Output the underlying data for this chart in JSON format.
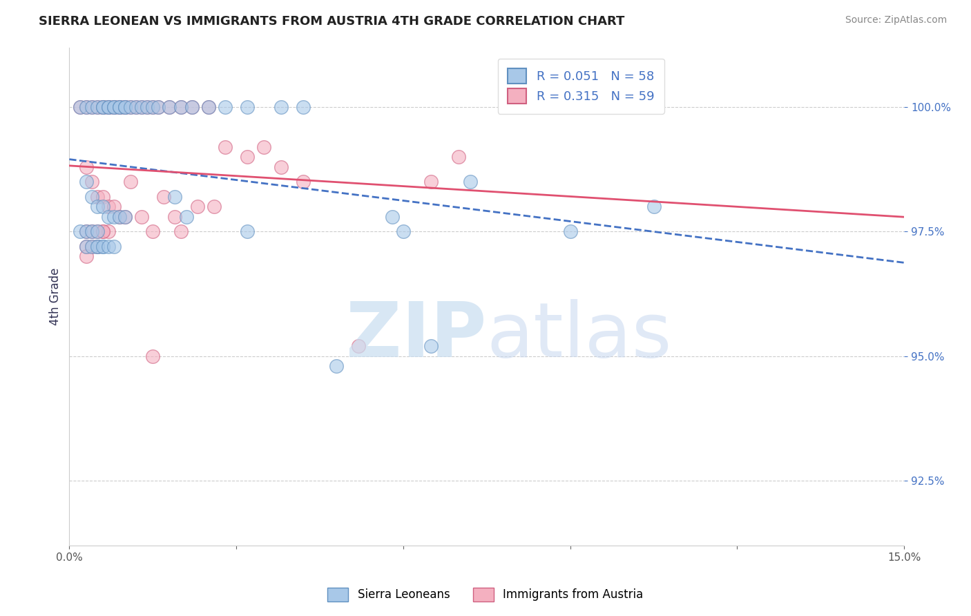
{
  "title": "SIERRA LEONEAN VS IMMIGRANTS FROM AUSTRIA 4TH GRADE CORRELATION CHART",
  "source": "Source: ZipAtlas.com",
  "ylabel": "4th Grade",
  "ytick_values": [
    92.5,
    95.0,
    97.5,
    100.0
  ],
  "xmin": 0.0,
  "xmax": 15.0,
  "ymin": 91.2,
  "ymax": 101.2,
  "legend_blue_label": "Sierra Leoneans",
  "legend_pink_label": "Immigrants from Austria",
  "R_blue": "0.051",
  "N_blue": "58",
  "R_pink": "0.315",
  "N_pink": "59",
  "blue_color": "#a8c8e8",
  "pink_color": "#f4b0c0",
  "blue_edge_color": "#6090c0",
  "pink_edge_color": "#d06080",
  "blue_line_color": "#4472c4",
  "pink_line_color": "#e05070",
  "blue_scatter_x": [
    0.2,
    0.3,
    0.4,
    0.5,
    0.6,
    0.6,
    0.7,
    0.7,
    0.8,
    0.8,
    0.9,
    0.9,
    1.0,
    1.0,
    1.1,
    1.2,
    1.3,
    1.4,
    1.5,
    1.6,
    1.8,
    2.0,
    2.2,
    2.5,
    2.8,
    3.2,
    3.8,
    4.2,
    0.3,
    0.4,
    0.5,
    0.6,
    0.7,
    0.8,
    0.9,
    1.0,
    0.2,
    0.3,
    0.4,
    0.5,
    0.5,
    0.6,
    0.3,
    0.4,
    0.5,
    0.6,
    0.7,
    0.8,
    1.9,
    2.1,
    3.2,
    6.0,
    7.2,
    5.8,
    9.0,
    10.5,
    6.5,
    4.8
  ],
  "blue_scatter_y": [
    100.0,
    100.0,
    100.0,
    100.0,
    100.0,
    100.0,
    100.0,
    100.0,
    100.0,
    100.0,
    100.0,
    100.0,
    100.0,
    100.0,
    100.0,
    100.0,
    100.0,
    100.0,
    100.0,
    100.0,
    100.0,
    100.0,
    100.0,
    100.0,
    100.0,
    100.0,
    100.0,
    100.0,
    98.5,
    98.2,
    98.0,
    98.0,
    97.8,
    97.8,
    97.8,
    97.8,
    97.5,
    97.5,
    97.5,
    97.5,
    97.2,
    97.2,
    97.2,
    97.2,
    97.2,
    97.2,
    97.2,
    97.2,
    98.2,
    97.8,
    97.5,
    97.5,
    98.5,
    97.8,
    97.5,
    98.0,
    95.2,
    94.8
  ],
  "pink_scatter_x": [
    0.2,
    0.3,
    0.4,
    0.5,
    0.6,
    0.6,
    0.7,
    0.7,
    0.8,
    0.8,
    0.9,
    0.9,
    1.0,
    1.0,
    1.1,
    1.2,
    1.3,
    1.4,
    1.5,
    1.6,
    1.8,
    2.0,
    2.2,
    2.5,
    0.3,
    0.4,
    0.5,
    0.6,
    0.7,
    0.8,
    0.9,
    1.0,
    1.1,
    1.3,
    1.5,
    2.0,
    0.3,
    0.4,
    0.5,
    0.6,
    0.7,
    0.3,
    0.4,
    0.5,
    0.6,
    0.3,
    1.7,
    1.9,
    2.3,
    3.5,
    4.2,
    3.8,
    2.8,
    3.2,
    5.2,
    7.0,
    6.5,
    1.5,
    2.6
  ],
  "pink_scatter_y": [
    100.0,
    100.0,
    100.0,
    100.0,
    100.0,
    100.0,
    100.0,
    100.0,
    100.0,
    100.0,
    100.0,
    100.0,
    100.0,
    100.0,
    100.0,
    100.0,
    100.0,
    100.0,
    100.0,
    100.0,
    100.0,
    100.0,
    100.0,
    100.0,
    98.8,
    98.5,
    98.2,
    98.2,
    98.0,
    98.0,
    97.8,
    97.8,
    98.5,
    97.8,
    97.5,
    97.5,
    97.5,
    97.5,
    97.5,
    97.5,
    97.5,
    97.2,
    97.2,
    97.2,
    97.5,
    97.0,
    98.2,
    97.8,
    98.0,
    99.2,
    98.5,
    98.8,
    99.2,
    99.0,
    95.2,
    99.0,
    98.5,
    95.0,
    98.0
  ]
}
